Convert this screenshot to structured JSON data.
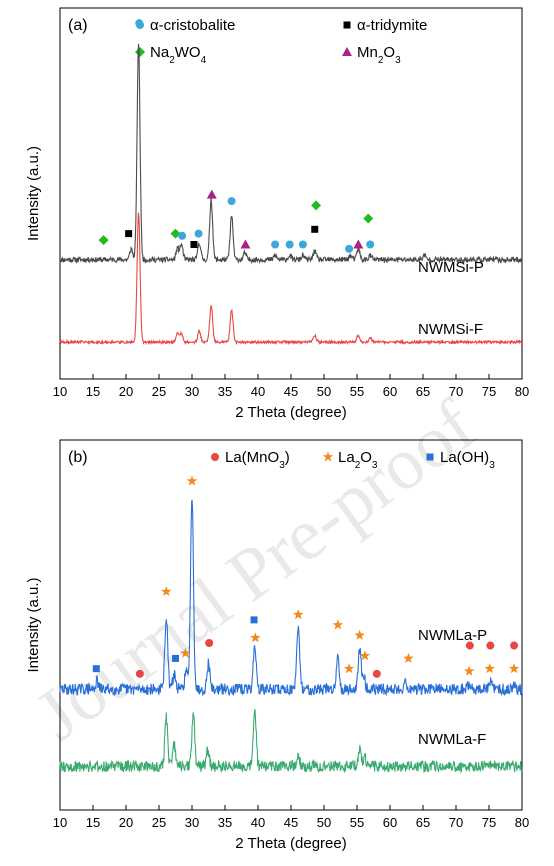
{
  "watermark": "Journal Pre-proof",
  "chart_data": [
    {
      "panel": "(a)",
      "type": "line",
      "xlabel": "2 Theta (degree)",
      "ylabel": "Intensity (a.u.)",
      "xlim": [
        10,
        80
      ],
      "xticks": [
        "10",
        "15",
        "20",
        "25",
        "30",
        "35",
        "40",
        "45",
        "50",
        "55",
        "60",
        "65",
        "70",
        "75",
        "80"
      ],
      "grid": false,
      "legend_position": "top-right",
      "legend": [
        {
          "label": "α-cristobalite",
          "marker": "circle",
          "color": "#3aa8d8"
        },
        {
          "label": "α-tridymite",
          "marker": "square",
          "color": "#000000"
        },
        {
          "label": "Na2WO4",
          "marker": "diamond",
          "color": "#22bb22"
        },
        {
          "label": "Mn2O3",
          "marker": "triangle",
          "color": "#aa2288"
        }
      ],
      "series": [
        {
          "name": "NWMSi-P",
          "color": "#4a4a4a",
          "baseline": 0.38,
          "noise": 0.012,
          "peaks": [
            [
              20.8,
              0.05
            ],
            [
              21.9,
              1.0
            ],
            [
              27.8,
              0.05
            ],
            [
              28.4,
              0.07
            ],
            [
              31.1,
              0.08
            ],
            [
              32.9,
              0.28
            ],
            [
              36.0,
              0.2
            ],
            [
              38.0,
              0.03
            ],
            [
              42.6,
              0.02
            ],
            [
              44.8,
              0.02
            ],
            [
              46.8,
              0.02
            ],
            [
              48.6,
              0.04
            ],
            [
              54.0,
              0.02
            ],
            [
              55.2,
              0.05
            ],
            [
              57.0,
              0.02
            ],
            [
              65.2,
              0.02
            ]
          ]
        },
        {
          "name": "NWMSi-F",
          "color": "#e84545",
          "baseline": 0.0,
          "noise": 0.006,
          "peaks": [
            [
              21.9,
              0.6
            ],
            [
              27.8,
              0.04
            ],
            [
              28.4,
              0.04
            ],
            [
              31.1,
              0.05
            ],
            [
              32.9,
              0.17
            ],
            [
              36.0,
              0.15
            ],
            [
              48.6,
              0.03
            ],
            [
              55.2,
              0.03
            ],
            [
              57.0,
              0.02
            ]
          ]
        }
      ],
      "markers": [
        {
          "phase": "Na2WO4",
          "positions": [
            [
              16.6,
              0.47
            ],
            [
              27.5,
              0.5
            ],
            [
              48.8,
              0.63
            ],
            [
              56.7,
              0.57
            ]
          ]
        },
        {
          "phase": "α-tridymite",
          "positions": [
            [
              20.4,
              0.5
            ],
            [
              30.3,
              0.45
            ],
            [
              48.6,
              0.52
            ]
          ]
        },
        {
          "phase": "α-cristobalite",
          "positions": [
            [
              22.0,
              1.47
            ],
            [
              28.5,
              0.49
            ],
            [
              31.0,
              0.5
            ],
            [
              36.0,
              0.65
            ],
            [
              42.6,
              0.45
            ],
            [
              44.8,
              0.45
            ],
            [
              46.8,
              0.45
            ],
            [
              53.8,
              0.43
            ],
            [
              57.0,
              0.45
            ]
          ]
        },
        {
          "phase": "Mn2O3",
          "positions": [
            [
              33.0,
              0.68
            ],
            [
              38.1,
              0.45
            ],
            [
              55.2,
              0.45
            ]
          ]
        }
      ]
    },
    {
      "panel": "(b)",
      "type": "line",
      "xlabel": "2 Theta (degree)",
      "ylabel": "Intensity (a.u.)",
      "xlim": [
        10,
        80
      ],
      "xticks": [
        "10",
        "15",
        "20",
        "25",
        "30",
        "35",
        "40",
        "45",
        "50",
        "55",
        "60",
        "65",
        "70",
        "75",
        "80"
      ],
      "grid": false,
      "legend_position": "top-right",
      "legend": [
        {
          "label": "La(MnO3)",
          "marker": "circle",
          "color": "#e84545"
        },
        {
          "label": "La2O3",
          "marker": "star",
          "color": "#f28a1e"
        },
        {
          "label": "La(OH)3",
          "marker": "square",
          "color": "#2a6fd6"
        }
      ],
      "series": [
        {
          "name": "NWMLa-P",
          "color": "#2a6fd6",
          "baseline": 0.3,
          "noise": 0.022,
          "peaks": [
            [
              15.6,
              0.03
            ],
            [
              26.1,
              0.28
            ],
            [
              27.3,
              0.06
            ],
            [
              29.1,
              0.07
            ],
            [
              30.0,
              0.76
            ],
            [
              32.5,
              0.1
            ],
            [
              39.5,
              0.17
            ],
            [
              46.1,
              0.23
            ],
            [
              52.1,
              0.13
            ],
            [
              55.4,
              0.15
            ],
            [
              56.0,
              0.06
            ],
            [
              62.3,
              0.03
            ],
            [
              72.0,
              0.02
            ],
            [
              75.2,
              0.03
            ],
            [
              78.9,
              0.02
            ]
          ]
        },
        {
          "name": "NWMLa-F",
          "color": "#3aaa6e",
          "baseline": 0.0,
          "noise": 0.022,
          "peaks": [
            [
              26.1,
              0.19
            ],
            [
              27.3,
              0.08
            ],
            [
              30.2,
              0.2
            ],
            [
              32.4,
              0.06
            ],
            [
              39.5,
              0.22
            ],
            [
              46.1,
              0.04
            ],
            [
              55.4,
              0.07
            ],
            [
              56.2,
              0.03
            ]
          ]
        }
      ],
      "markers": [
        {
          "phase": "La2O3",
          "positions": [
            [
              26.1,
              0.68
            ],
            [
              29.0,
              0.44
            ],
            [
              30.0,
              1.11
            ],
            [
              39.6,
              0.5
            ],
            [
              46.1,
              0.59
            ],
            [
              52.1,
              0.55
            ],
            [
              53.8,
              0.38
            ],
            [
              55.4,
              0.51
            ],
            [
              56.2,
              0.43
            ],
            [
              62.8,
              0.42
            ],
            [
              72.0,
              0.37
            ],
            [
              75.1,
              0.38
            ],
            [
              78.8,
              0.38
            ]
          ]
        },
        {
          "phase": "La(MnO3)",
          "positions": [
            [
              22.1,
              0.36
            ],
            [
              32.6,
              0.48
            ],
            [
              58.0,
              0.36
            ],
            [
              72.1,
              0.47
            ],
            [
              75.2,
              0.47
            ],
            [
              78.8,
              0.47
            ]
          ]
        },
        {
          "phase": "La(OH)3",
          "positions": [
            [
              15.5,
              0.38
            ],
            [
              27.5,
              0.42
            ],
            [
              39.4,
              0.57
            ]
          ]
        }
      ]
    }
  ]
}
